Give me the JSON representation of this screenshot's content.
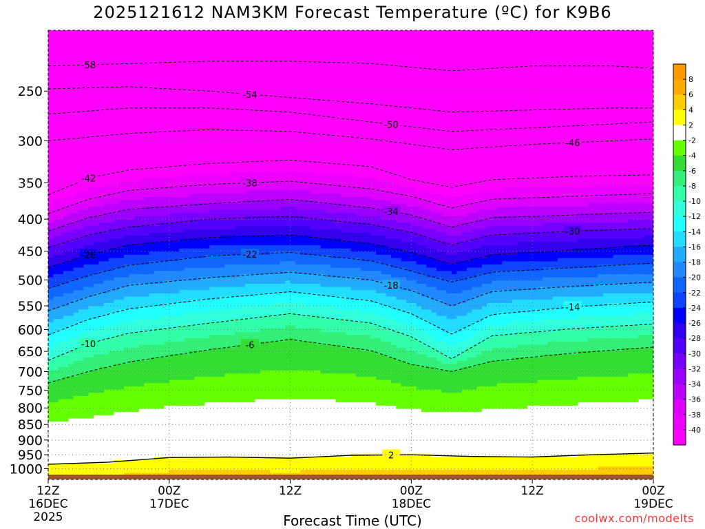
{
  "title": "2025121612 NAM3KM Forecast Temperature (ºC) for K9B6",
  "credit": "coolwx.com/modelts",
  "colors": {
    "background": "#ffffff",
    "ground": "#a0522d",
    "credit": "#ff3333",
    "freezing_line": "#e8307a",
    "contour": "#000000"
  },
  "chart_data": {
    "type": "heatmap",
    "title": "2025121612 NAM3KM Forecast Temperature (ºC) for K9B6",
    "xlabel": "Forecast Time (UTC)",
    "ylabel": "",
    "x_ticks": [
      {
        "line1": "12Z",
        "line2": "16DEC",
        "line3": "2025",
        "hours": 0
      },
      {
        "line1": "00Z",
        "line2": "17DEC",
        "line3": "",
        "hours": 12
      },
      {
        "line1": "12Z",
        "line2": "",
        "line3": "",
        "hours": 24
      },
      {
        "line1": "00Z",
        "line2": "18DEC",
        "line3": "",
        "hours": 36
      },
      {
        "line1": "12Z",
        "line2": "",
        "line3": "",
        "hours": 48
      },
      {
        "line1": "00Z",
        "line2": "19DEC",
        "line3": "",
        "hours": 60
      }
    ],
    "xlim": [
      0,
      60
    ],
    "y_ticks": [
      250,
      300,
      350,
      400,
      450,
      500,
      550,
      600,
      650,
      700,
      750,
      800,
      850,
      900,
      950,
      1000
    ],
    "ylim": [
      1040,
      200
    ],
    "y_scale": "log",
    "colorbar": {
      "labels": [
        8,
        6,
        4,
        2,
        -2,
        -4,
        -6,
        -8,
        -10,
        -12,
        -14,
        -16,
        -18,
        -20,
        -22,
        -24,
        -26,
        -28,
        -30,
        -32,
        -34,
        -36,
        -38,
        -40
      ],
      "bands": [
        {
          "color": "#ff9900",
          "min": 8,
          "max": 10
        },
        {
          "color": "#ffaa00",
          "min": 6,
          "max": 8
        },
        {
          "color": "#ffcc00",
          "min": 4,
          "max": 6
        },
        {
          "color": "#ffff00",
          "min": 2,
          "max": 4
        },
        {
          "color": "#ffffff",
          "min": -2,
          "max": 2
        },
        {
          "color": "#66ff00",
          "min": -4,
          "max": -2
        },
        {
          "color": "#33dd33",
          "min": -6,
          "max": -4
        },
        {
          "color": "#33ee77",
          "min": -8,
          "max": -6
        },
        {
          "color": "#33ffaa",
          "min": -10,
          "max": -8
        },
        {
          "color": "#33ffdd",
          "min": -12,
          "max": -10
        },
        {
          "color": "#22ffff",
          "min": -14,
          "max": -12
        },
        {
          "color": "#22ddff",
          "min": -16,
          "max": -14
        },
        {
          "color": "#22aaff",
          "min": -18,
          "max": -16
        },
        {
          "color": "#2288ff",
          "min": -20,
          "max": -18
        },
        {
          "color": "#1166ff",
          "min": -22,
          "max": -20
        },
        {
          "color": "#1144ff",
          "min": -24,
          "max": -22
        },
        {
          "color": "#0000ff",
          "min": -26,
          "max": -24
        },
        {
          "color": "#3300ee",
          "min": -28,
          "max": -26
        },
        {
          "color": "#5500ff",
          "min": -30,
          "max": -28
        },
        {
          "color": "#7700ff",
          "min": -32,
          "max": -30
        },
        {
          "color": "#9900ff",
          "min": -34,
          "max": -32
        },
        {
          "color": "#bb00ff",
          "min": -36,
          "max": -34
        },
        {
          "color": "#dd00ff",
          "min": -38,
          "max": -36
        },
        {
          "color": "#ee00ff",
          "min": -40,
          "max": -38
        },
        {
          "color": "#ff00ff",
          "min": -60,
          "max": -40
        }
      ]
    },
    "isotherms": [
      {
        "temp": -58,
        "points": [
          [
            0,
            228
          ],
          [
            8,
            226
          ],
          [
            16,
            224
          ],
          [
            24,
            224
          ],
          [
            32,
            226
          ],
          [
            40,
            232
          ],
          [
            48,
            228
          ],
          [
            56,
            228
          ],
          [
            60,
            230
          ]
        ]
      },
      {
        "temp": -54,
        "points": [
          [
            0,
            248
          ],
          [
            8,
            246
          ],
          [
            16,
            250
          ],
          [
            24,
            256
          ],
          [
            32,
            262
          ],
          [
            40,
            270
          ],
          [
            48,
            268
          ],
          [
            56,
            266
          ],
          [
            60,
            266
          ]
        ]
      },
      {
        "temp": -50,
        "points": [
          [
            0,
            272
          ],
          [
            8,
            266
          ],
          [
            16,
            266
          ],
          [
            24,
            270
          ],
          [
            32,
            280
          ],
          [
            40,
            290
          ],
          [
            48,
            286
          ],
          [
            56,
            282
          ],
          [
            60,
            280
          ]
        ]
      },
      {
        "temp": -46,
        "points": [
          [
            0,
            300
          ],
          [
            8,
            292
          ],
          [
            16,
            288
          ],
          [
            24,
            290
          ],
          [
            32,
            298
          ],
          [
            40,
            310
          ],
          [
            48,
            304
          ],
          [
            56,
            300
          ],
          [
            60,
            298
          ]
        ]
      },
      {
        "temp": -42,
        "points": [
          [
            0,
            366
          ],
          [
            4,
            344
          ],
          [
            8,
            334
          ],
          [
            16,
            326
          ],
          [
            24,
            322
          ],
          [
            32,
            330
          ],
          [
            36,
            346
          ],
          [
            40,
            356
          ],
          [
            44,
            346
          ],
          [
            52,
            342
          ],
          [
            60,
            340
          ]
        ]
      },
      {
        "temp": -38,
        "points": [
          [
            0,
            392
          ],
          [
            4,
            372
          ],
          [
            8,
            360
          ],
          [
            16,
            352
          ],
          [
            24,
            348
          ],
          [
            32,
            358
          ],
          [
            36,
            368
          ],
          [
            40,
            384
          ],
          [
            44,
            372
          ],
          [
            52,
            368
          ],
          [
            60,
            364
          ]
        ]
      },
      {
        "temp": -34,
        "points": [
          [
            0,
            418
          ],
          [
            4,
            398
          ],
          [
            8,
            386
          ],
          [
            16,
            378
          ],
          [
            24,
            372
          ],
          [
            32,
            384
          ],
          [
            36,
            394
          ],
          [
            40,
            412
          ],
          [
            44,
            398
          ],
          [
            52,
            394
          ],
          [
            60,
            390
          ]
        ]
      },
      {
        "temp": -30,
        "points": [
          [
            0,
            444
          ],
          [
            4,
            424
          ],
          [
            8,
            412
          ],
          [
            16,
            400
          ],
          [
            24,
            396
          ],
          [
            32,
            408
          ],
          [
            36,
            420
          ],
          [
            40,
            440
          ],
          [
            44,
            424
          ],
          [
            52,
            418
          ],
          [
            60,
            414
          ]
        ]
      },
      {
        "temp": -26,
        "points": [
          [
            0,
            478
          ],
          [
            4,
            456
          ],
          [
            8,
            440
          ],
          [
            16,
            428
          ],
          [
            24,
            424
          ],
          [
            32,
            438
          ],
          [
            36,
            452
          ],
          [
            40,
            472
          ],
          [
            44,
            456
          ],
          [
            52,
            448
          ],
          [
            60,
            440
          ]
        ]
      },
      {
        "temp": -22,
        "points": [
          [
            0,
            516
          ],
          [
            4,
            492
          ],
          [
            8,
            474
          ],
          [
            16,
            458
          ],
          [
            24,
            452
          ],
          [
            32,
            466
          ],
          [
            36,
            484
          ],
          [
            40,
            504
          ],
          [
            44,
            486
          ],
          [
            52,
            478
          ],
          [
            60,
            470
          ]
        ]
      },
      {
        "temp": -18,
        "points": [
          [
            0,
            560
          ],
          [
            4,
            532
          ],
          [
            8,
            510
          ],
          [
            16,
            496
          ],
          [
            24,
            486
          ],
          [
            32,
            500
          ],
          [
            36,
            520
          ],
          [
            40,
            550
          ],
          [
            44,
            522
          ],
          [
            52,
            512
          ],
          [
            60,
            504
          ]
        ]
      },
      {
        "temp": -14,
        "points": [
          [
            0,
            612
          ],
          [
            4,
            578
          ],
          [
            8,
            556
          ],
          [
            16,
            536
          ],
          [
            24,
            522
          ],
          [
            32,
            540
          ],
          [
            36,
            566
          ],
          [
            40,
            610
          ],
          [
            44,
            568
          ],
          [
            52,
            552
          ],
          [
            60,
            542
          ]
        ]
      },
      {
        "temp": -10,
        "points": [
          [
            0,
            672
          ],
          [
            4,
            632
          ],
          [
            8,
            608
          ],
          [
            16,
            586
          ],
          [
            24,
            566
          ],
          [
            32,
            586
          ],
          [
            36,
            616
          ],
          [
            40,
            668
          ],
          [
            44,
            614
          ],
          [
            52,
            598
          ],
          [
            60,
            588
          ]
        ]
      },
      {
        "temp": -6,
        "points": [
          [
            0,
            730
          ],
          [
            4,
            700
          ],
          [
            8,
            676
          ],
          [
            16,
            646
          ],
          [
            24,
            622
          ],
          [
            32,
            648
          ],
          [
            36,
            682
          ],
          [
            40,
            700
          ],
          [
            44,
            674
          ],
          [
            52,
            654
          ],
          [
            60,
            640
          ]
        ]
      },
      {
        "temp": 2,
        "points": [
          [
            0,
            984
          ],
          [
            6,
            976
          ],
          [
            12,
            960
          ],
          [
            18,
            958
          ],
          [
            24,
            962
          ],
          [
            30,
            952
          ],
          [
            36,
            950
          ],
          [
            42,
            956
          ],
          [
            48,
            958
          ],
          [
            54,
            950
          ],
          [
            60,
            944
          ]
        ]
      }
    ]
  }
}
